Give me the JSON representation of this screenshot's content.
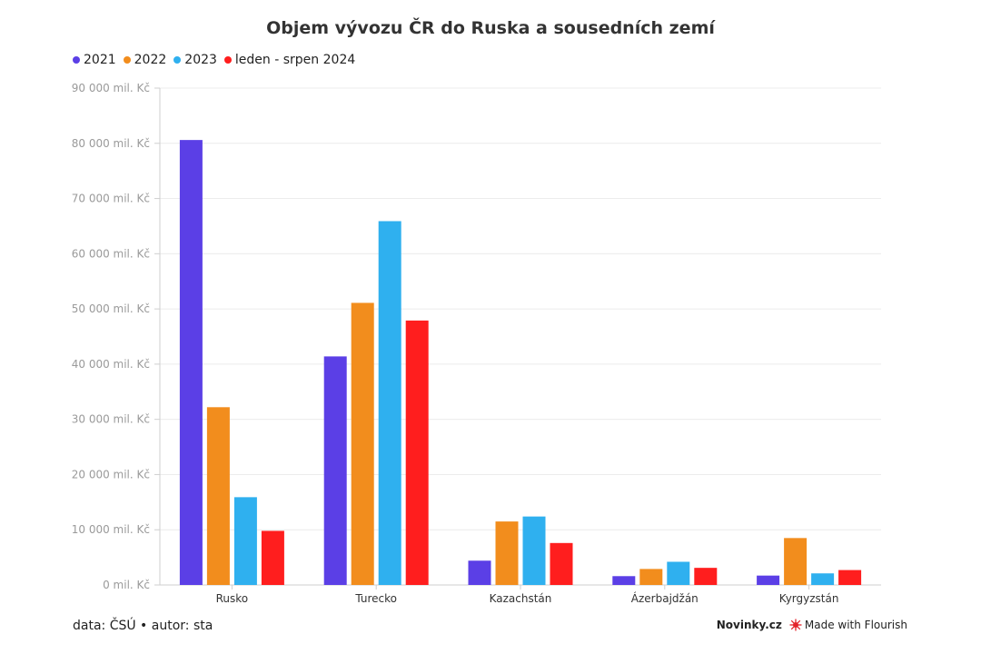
{
  "chart_data": {
    "type": "bar",
    "title": "Objem vývozu ČR do Ruska a sousedních zemí",
    "categories": [
      "Rusko",
      "Turecko",
      "Kazachstán",
      "Ázerbajdžán",
      "Kyrgyzstán"
    ],
    "series": [
      {
        "name": "2021",
        "color": "#5b3fe6",
        "values": [
          80600,
          41400,
          4400,
          1600,
          1700
        ]
      },
      {
        "name": "2022",
        "color": "#f28d1d",
        "values": [
          32200,
          51100,
          11500,
          2900,
          8500
        ]
      },
      {
        "name": "2023",
        "color": "#2fb0ef",
        "values": [
          15900,
          65900,
          12400,
          4200,
          2100
        ]
      },
      {
        "name": "leden - srpen 2024",
        "color": "#ff1e1e",
        "values": [
          9800,
          47900,
          7600,
          3100,
          2700
        ]
      }
    ],
    "ylim": [
      0,
      90000
    ],
    "yticks": [
      0,
      10000,
      20000,
      30000,
      40000,
      50000,
      60000,
      70000,
      80000,
      90000
    ],
    "ytick_labels": [
      "0 mil. Kč",
      "10 000 mil. Kč",
      "20 000 mil. Kč",
      "30 000 mil. Kč",
      "40 000 mil. Kč",
      "50 000 mil. Kč",
      "60 000 mil. Kč",
      "70 000 mil. Kč",
      "80 000 mil. Kč",
      "90 000 mil. Kč"
    ],
    "xlabel": "",
    "ylabel": "",
    "grid": true,
    "legend_position": "top-left"
  },
  "footer": {
    "source": "data: ČSÚ • autor: sta",
    "brand": "Novinky.cz",
    "made_with": "Made with Flourish"
  }
}
